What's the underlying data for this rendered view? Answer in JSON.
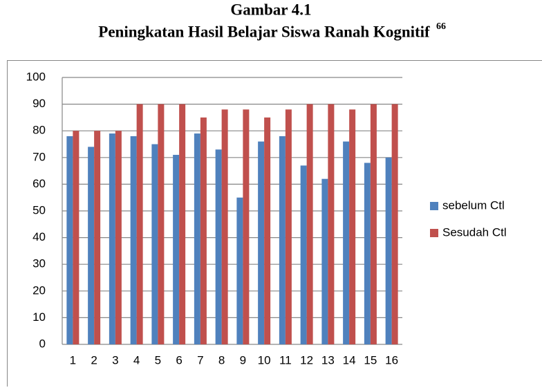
{
  "chart_data": {
    "type": "bar",
    "title": "Gambar 4.1",
    "subtitle": "Peningkatan Hasil Belajar Siswa Ranah Kognitif",
    "footnote_mark": "66",
    "categories": [
      "1",
      "2",
      "3",
      "4",
      "5",
      "6",
      "7",
      "8",
      "9",
      "10",
      "11",
      "12",
      "13",
      "14",
      "15",
      "16"
    ],
    "series": [
      {
        "name": "sebelum Ctl",
        "color": "#4f81bd",
        "values": [
          78,
          74,
          79,
          78,
          75,
          71,
          79,
          73,
          55,
          76,
          78,
          67,
          62,
          76,
          68,
          70
        ]
      },
      {
        "name": "Sesudah Ctl",
        "color": "#c0504d",
        "values": [
          80,
          80,
          80,
          90,
          90,
          90,
          85,
          88,
          88,
          85,
          88,
          90,
          90,
          88,
          90,
          90
        ]
      }
    ],
    "ylim": [
      0,
      100
    ],
    "yticks": [
      0,
      10,
      20,
      30,
      40,
      50,
      60,
      70,
      80,
      90,
      100
    ],
    "grid": true,
    "legend": "right"
  }
}
